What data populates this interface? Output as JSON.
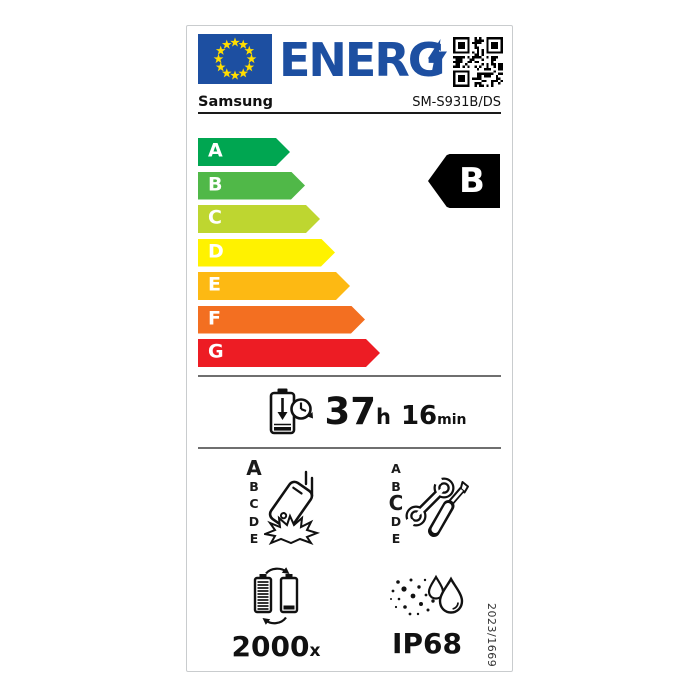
{
  "label": {
    "logo_text": "ENERG",
    "supplier": "Samsung",
    "model": "SM-S931B/DS",
    "efficiency_scale": [
      {
        "grade": "A",
        "color": "#00a651"
      },
      {
        "grade": "B",
        "color": "#50b848"
      },
      {
        "grade": "C",
        "color": "#bed630"
      },
      {
        "grade": "D",
        "color": "#fff200"
      },
      {
        "grade": "E",
        "color": "#fdb913"
      },
      {
        "grade": "F",
        "color": "#f36f21"
      },
      {
        "grade": "G",
        "color": "#ed1c24"
      }
    ],
    "efficiency_rating": "B",
    "battery_endurance": {
      "hours": "37",
      "hours_unit": "h",
      "minutes": "16",
      "minutes_unit": "min"
    },
    "drop_resistance": {
      "scale": [
        "A",
        "B",
        "C",
        "D",
        "E"
      ],
      "rating": "A"
    },
    "repairability": {
      "scale": [
        "A",
        "B",
        "C",
        "D",
        "E"
      ],
      "rating": "C"
    },
    "battery_cycles": {
      "count": "2000",
      "suffix": "x"
    },
    "ingress_protection": "IP68",
    "regulation": "2023/1669"
  },
  "icons": {
    "flag": "eu-flag-icon",
    "logo_bolt": "lightning-bolt-icon",
    "qr": "qr-code",
    "endurance": "battery-clock-icon",
    "drop": "phone-drop-icon",
    "repair": "wrench-screwdriver-icon",
    "cycles": "battery-cycle-icon",
    "ingress": "dust-water-icon"
  },
  "colors": {
    "eu_blue": "#1d4fa1",
    "star_yellow": "#ffdd00",
    "badge_black": "#000000",
    "separator": "#6f6f6f"
  }
}
